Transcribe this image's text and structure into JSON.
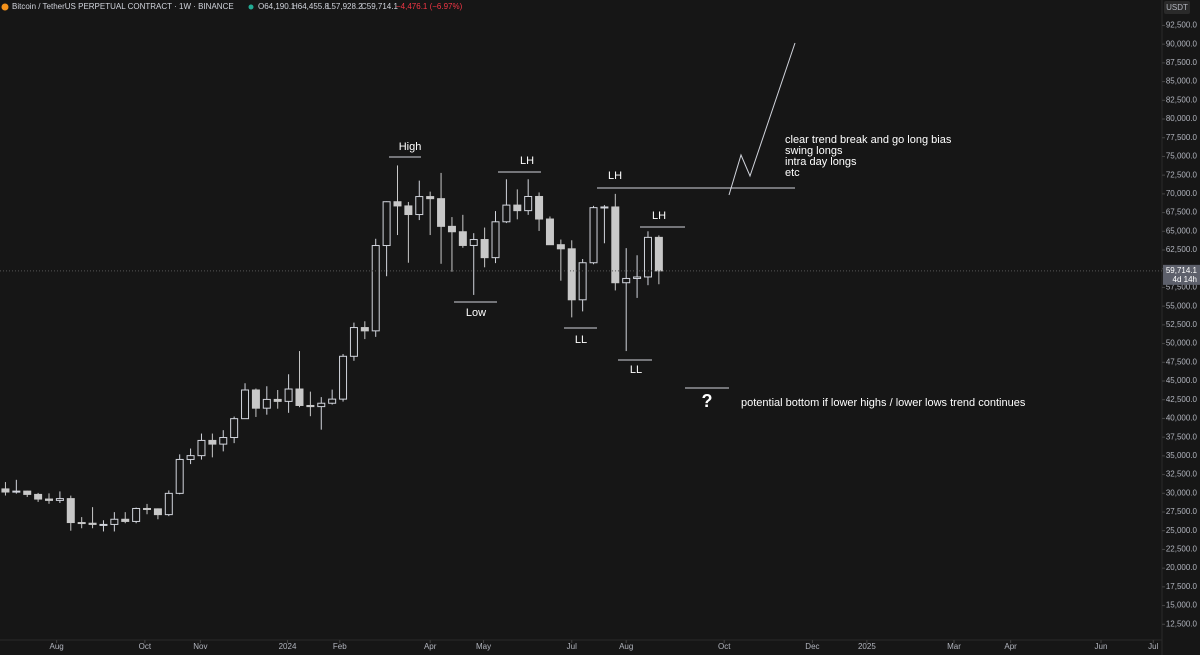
{
  "header": {
    "title": "Bitcoin / TetherUS PERPETUAL CONTRACT · 1W · BINANCE",
    "open": "O64,190.1",
    "high": "H64,455.8",
    "low": "L57,928.2",
    "close": "C59,714.1",
    "change": "−4,476.1 (−6.97%)",
    "quote": "USDT",
    "price": "59,714.1",
    "countdown": "4d 14h"
  },
  "chart_data": {
    "type": "candlestick",
    "open": [
      30585,
      30170,
      30290,
      29850,
      29230,
      29050,
      29290,
      26090,
      26000,
      25840,
      25840,
      26530,
      26240,
      27970,
      27920,
      27150,
      29990,
      34520,
      35030,
      37060,
      36570,
      37450,
      39970,
      43800,
      41370,
      42540,
      42280,
      43930,
      41730,
      41580,
      42030,
      42580,
      48300,
      52140,
      51700,
      63100,
      68950,
      68390,
      67240,
      69640,
      69360,
      65660,
      64940,
      63110,
      63900,
      61480,
      66270,
      68500,
      67760,
      69650,
      66640,
      63210,
      62660,
      55850,
      60800,
      68160,
      68250,
      58130,
      58700,
      58900,
      64190
    ],
    "high": [
      31500,
      31800,
      30350,
      30050,
      29990,
      30250,
      29690,
      26820,
      28150,
      26400,
      27480,
      27480,
      28090,
      28580,
      27980,
      30380,
      35200,
      35980,
      37980,
      37980,
      38430,
      40250,
      44700,
      44000,
      44300,
      43800,
      45900,
      49000,
      43580,
      42850,
      43850,
      48600,
      52800,
      52980,
      64000,
      69000,
      73800,
      68920,
      71770,
      70300,
      72800,
      66900,
      67200,
      64750,
      65500,
      67700,
      71950,
      70600,
      71950,
      70190,
      66980,
      63900,
      63800,
      61300,
      68400,
      68500,
      70000,
      62750,
      61800,
      65000,
      64455
    ],
    "low": [
      29700,
      29950,
      29500,
      28850,
      28600,
      28700,
      25000,
      25330,
      25330,
      24900,
      24900,
      26000,
      26000,
      27200,
      26530,
      26950,
      29870,
      33900,
      34500,
      34800,
      35600,
      36700,
      39970,
      40200,
      40500,
      41300,
      40750,
      41500,
      40300,
      38500,
      41850,
      42250,
      47700,
      50600,
      50900,
      59000,
      64500,
      60800,
      66500,
      64500,
      60660,
      59600,
      62800,
      56500,
      60190,
      60750,
      66100,
      66600,
      67200,
      65050,
      63360,
      58400,
      53500,
      54300,
      60600,
      63400,
      57100,
      49000,
      56100,
      57800,
      57928
    ],
    "close": [
      30170,
      30290,
      29850,
      29230,
      29050,
      29290,
      26090,
      26000,
      25840,
      25840,
      26530,
      26240,
      27970,
      27920,
      27150,
      29990,
      34520,
      35030,
      37060,
      36570,
      37450,
      39970,
      43800,
      41370,
      42540,
      42280,
      43930,
      41730,
      41580,
      42030,
      42580,
      48300,
      52140,
      51700,
      63100,
      68950,
      68390,
      67240,
      69640,
      69360,
      65660,
      64940,
      63110,
      63900,
      61480,
      66270,
      68500,
      67760,
      69650,
      66640,
      63210,
      62660,
      55850,
      60800,
      68160,
      68250,
      58130,
      58700,
      58900,
      64190,
      59714
    ],
    "up_color": "#d1d4dc",
    "down_color": "#c8c8c8",
    "ylim": [
      10400,
      95900
    ],
    "yticks": [
      {
        "value": 12500,
        "label": "12,500.0"
      },
      {
        "value": 15000,
        "label": "15,000.0"
      },
      {
        "value": 17500,
        "label": "17,500.0"
      },
      {
        "value": 20000,
        "label": "20,000.0"
      },
      {
        "value": 22500,
        "label": "22,500.0"
      },
      {
        "value": 25000,
        "label": "25,000.0"
      },
      {
        "value": 27500,
        "label": "27,500.0"
      },
      {
        "value": 30000,
        "label": "30,000.0"
      },
      {
        "value": 32500,
        "label": "32,500.0"
      },
      {
        "value": 35000,
        "label": "35,000.0"
      },
      {
        "value": 37500,
        "label": "37,500.0"
      },
      {
        "value": 40000,
        "label": "40,000.0"
      },
      {
        "value": 42500,
        "label": "42,500.0"
      },
      {
        "value": 45000,
        "label": "45,000.0"
      },
      {
        "value": 47500,
        "label": "47,500.0"
      },
      {
        "value": 50000,
        "label": "50,000.0"
      },
      {
        "value": 52500,
        "label": "52,500.0"
      },
      {
        "value": 55000,
        "label": "55,000.0"
      },
      {
        "value": 57500,
        "label": "57,500.0"
      },
      {
        "value": 60000,
        "label": "60,000.0"
      },
      {
        "value": 62500,
        "label": "62,500.0"
      },
      {
        "value": 65000,
        "label": "65,000.0"
      },
      {
        "value": 67500,
        "label": "67,500.0"
      },
      {
        "value": 70000,
        "label": "70,000.0"
      },
      {
        "value": 72500,
        "label": "72,500.0"
      },
      {
        "value": 75000,
        "label": "75,000.0"
      },
      {
        "value": 77500,
        "label": "77,500.0"
      },
      {
        "value": 80000,
        "label": "80,000.0"
      },
      {
        "value": 82500,
        "label": "82,500.0"
      },
      {
        "value": 85000,
        "label": "85,000.0"
      },
      {
        "value": 87500,
        "label": "87,500.0"
      },
      {
        "value": 90000,
        "label": "90,000.0"
      },
      {
        "value": 92500,
        "label": "92,500.0"
      }
    ],
    "xlim": [
      -0.5,
      106.2
    ],
    "xticks": [
      {
        "value": 4.7,
        "label": "Aug"
      },
      {
        "value": 12.8,
        "label": "Oct"
      },
      {
        "value": 17.9,
        "label": "Nov"
      },
      {
        "value": 25.9,
        "label": "2024"
      },
      {
        "value": 30.7,
        "label": "Feb"
      },
      {
        "value": 39.0,
        "label": "Apr"
      },
      {
        "value": 43.9,
        "label": "May"
      },
      {
        "value": 52.0,
        "label": "Jul"
      },
      {
        "value": 57.0,
        "label": "Aug"
      },
      {
        "value": 66.0,
        "label": "Oct"
      },
      {
        "value": 74.1,
        "label": "Dec"
      },
      {
        "value": 79.1,
        "label": "2025"
      },
      {
        "value": 87.1,
        "label": "Mar"
      },
      {
        "value": 92.3,
        "label": "Apr"
      },
      {
        "value": 100.6,
        "label": "Jun"
      },
      {
        "value": 105.4,
        "label": "Jul"
      }
    ],
    "annotations": {
      "high": "High",
      "low": "Low",
      "lh1": "LH",
      "lh2": "LH",
      "lh3": "LH",
      "ll1": "LL",
      "ll2": "LL",
      "question": "?",
      "plan": [
        "clear trend break and go long bias",
        "swing longs",
        "intra day longs",
        "etc"
      ],
      "bottom": "potential bottom if lower highs / lower lows trend continues"
    }
  }
}
